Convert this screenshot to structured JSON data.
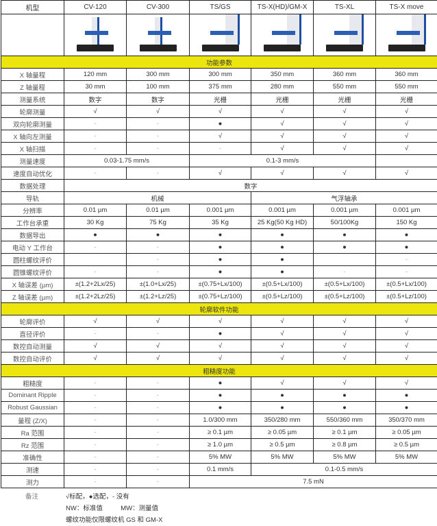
{
  "header": {
    "label": "机型",
    "models": [
      "CV-120",
      "CV-300",
      "TS/GS",
      "TS-X(HD)/GM-X",
      "TS-XL",
      "TS-X move"
    ]
  },
  "images": [
    "CV-120 machine photo",
    "CV-300 machine photo",
    "TS/GS machine photo",
    "TS-X(HD)/GM-X machine photo",
    "TS-XL machine photo",
    "TS-X move machine photo"
  ],
  "rows": [
    {
      "section": "功能参数"
    },
    {
      "label": "X 轴量程",
      "cells": [
        {
          "v": "120 mm"
        },
        {
          "v": "300 mm"
        },
        {
          "v": "300 mm"
        },
        {
          "v": "350 mm"
        },
        {
          "v": "360 mm"
        },
        {
          "v": "360 mm"
        }
      ]
    },
    {
      "label": "Z 轴量程",
      "cells": [
        {
          "v": "30 mm"
        },
        {
          "v": "100 mm"
        },
        {
          "v": "375 mm"
        },
        {
          "v": "280 mm"
        },
        {
          "v": "550 mm"
        },
        {
          "v": "550 mm"
        }
      ]
    },
    {
      "label": "测量系统",
      "cells": [
        {
          "v": "数字"
        },
        {
          "v": "数字"
        },
        {
          "v": "光栅"
        },
        {
          "v": "光栅"
        },
        {
          "v": "光栅"
        },
        {
          "v": "光栅"
        }
      ]
    },
    {
      "label": "轮廓测量",
      "cells": [
        {
          "v": "√"
        },
        {
          "v": "√"
        },
        {
          "v": "√"
        },
        {
          "v": "√"
        },
        {
          "v": "√"
        },
        {
          "v": "√"
        }
      ]
    },
    {
      "label": "双向轮廓测量",
      "cells": [
        {
          "v": "-"
        },
        {
          "v": "-"
        },
        {
          "v": "●"
        },
        {
          "v": "√"
        },
        {
          "v": "√"
        },
        {
          "v": "√"
        }
      ]
    },
    {
      "label": "X 轴向左测量",
      "cells": [
        {
          "v": "-"
        },
        {
          "v": "-"
        },
        {
          "v": "√"
        },
        {
          "v": "√"
        },
        {
          "v": "√"
        },
        {
          "v": "√"
        }
      ]
    },
    {
      "label": "X 轴扫描",
      "cells": [
        {
          "v": "-"
        },
        {
          "v": "-"
        },
        {
          "v": "-"
        },
        {
          "v": "√"
        },
        {
          "v": "√"
        },
        {
          "v": "√"
        }
      ]
    },
    {
      "label": "测量速度",
      "cells": [
        {
          "v": "0.03-1.75 mm/s",
          "span": 2
        },
        {
          "v": "0.1-3 mm/s",
          "span": 3
        },
        {
          "v": ""
        }
      ]
    },
    {
      "label": "速度自动优化",
      "cells": [
        {
          "v": "-"
        },
        {
          "v": "-"
        },
        {
          "v": "√"
        },
        {
          "v": "√"
        },
        {
          "v": "√"
        },
        {
          "v": "√"
        }
      ]
    },
    {
      "label": "数据处理",
      "cells": [
        {
          "v": "数字",
          "span": 6
        }
      ]
    },
    {
      "label": "导轨",
      "cells": [
        {
          "v": "机械",
          "span": 3
        },
        {
          "v": "气浮轴承",
          "span": 3
        }
      ]
    },
    {
      "label": "分辨率",
      "cells": [
        {
          "v": "0.01 µm"
        },
        {
          "v": "0.01 µm"
        },
        {
          "v": "0.001 µm"
        },
        {
          "v": "0.001 µm"
        },
        {
          "v": "0.001 µm"
        },
        {
          "v": "0.001 µm"
        }
      ]
    },
    {
      "label": "工作台承重",
      "cells": [
        {
          "v": "30 Kg"
        },
        {
          "v": "75 Kg"
        },
        {
          "v": "35 Kg"
        },
        {
          "v": "25 Kg(50 Kg HD)"
        },
        {
          "v": "50/100Kg"
        },
        {
          "v": "150 Kg"
        }
      ]
    },
    {
      "label": "数据导出",
      "cells": [
        {
          "v": "●"
        },
        {
          "v": "●"
        },
        {
          "v": "●"
        },
        {
          "v": "●"
        },
        {
          "v": "●"
        },
        {
          "v": "●"
        }
      ]
    },
    {
      "label": "电动 Y 工作台",
      "cells": [
        {
          "v": "-"
        },
        {
          "v": "-"
        },
        {
          "v": "●"
        },
        {
          "v": "●"
        },
        {
          "v": "●"
        },
        {
          "v": "●"
        }
      ]
    },
    {
      "label": "圆柱螺纹评价",
      "cells": [
        {
          "v": ""
        },
        {
          "v": "-"
        },
        {
          "v": "●"
        },
        {
          "v": "●"
        },
        {
          "v": ""
        },
        {
          "v": "-"
        }
      ]
    },
    {
      "label": "圆锥螺纹评价",
      "cells": [
        {
          "v": "-"
        },
        {
          "v": "-"
        },
        {
          "v": "●"
        },
        {
          "v": "●"
        },
        {
          "v": "-"
        },
        {
          "v": "-"
        }
      ]
    },
    {
      "label": "X 轴误差 (µm)",
      "cells": [
        {
          "v": "±(1.2+2Lx/25)"
        },
        {
          "v": "±(1.0+Lx/25)"
        },
        {
          "v": "±(0.75+Lx/100)"
        },
        {
          "v": "±(0.5+Lx/100)"
        },
        {
          "v": "±(0.5+Lx/100)"
        },
        {
          "v": "±(0.5+Lx/100)"
        }
      ]
    },
    {
      "label": "Z 轴误差 (µm)",
      "cells": [
        {
          "v": "±(1.2+2Lz/25)"
        },
        {
          "v": "±(1.2+Lz/25)"
        },
        {
          "v": "±(0.75+Lz/100)"
        },
        {
          "v": "±(0.5+Lz/100)"
        },
        {
          "v": "±(0.5+Lz/100)"
        },
        {
          "v": "±(0.5+Lz/100)"
        }
      ]
    },
    {
      "section": "轮廓软件功能"
    },
    {
      "label": "轮廓评价",
      "cells": [
        {
          "v": "√"
        },
        {
          "v": "√"
        },
        {
          "v": "√"
        },
        {
          "v": "√"
        },
        {
          "v": "√"
        },
        {
          "v": "√"
        }
      ]
    },
    {
      "label": "直径评价",
      "cells": [
        {
          "v": "-"
        },
        {
          "v": "-"
        },
        {
          "v": "●"
        },
        {
          "v": "√"
        },
        {
          "v": "√"
        },
        {
          "v": "√"
        }
      ]
    },
    {
      "label": "数控自动测量",
      "cells": [
        {
          "v": "√"
        },
        {
          "v": "√"
        },
        {
          "v": "√"
        },
        {
          "v": "√"
        },
        {
          "v": "√"
        },
        {
          "v": "√"
        }
      ]
    },
    {
      "label": "数控自动评价",
      "cells": [
        {
          "v": "√"
        },
        {
          "v": "√"
        },
        {
          "v": "√"
        },
        {
          "v": "√"
        },
        {
          "v": "√"
        },
        {
          "v": "√"
        }
      ]
    },
    {
      "section": "粗糙度功能"
    },
    {
      "label": "粗糙度",
      "cells": [
        {
          "v": "-"
        },
        {
          "v": "-"
        },
        {
          "v": "●"
        },
        {
          "v": "√"
        },
        {
          "v": "√"
        },
        {
          "v": "√"
        }
      ]
    },
    {
      "label": "Dominant Ripple",
      "cells": [
        {
          "v": "-"
        },
        {
          "v": "-"
        },
        {
          "v": "●"
        },
        {
          "v": "●"
        },
        {
          "v": "●"
        },
        {
          "v": "●"
        }
      ]
    },
    {
      "label": "Robust Gaussian",
      "cells": [
        {
          "v": "-"
        },
        {
          "v": "-"
        },
        {
          "v": "●"
        },
        {
          "v": "●"
        },
        {
          "v": "●"
        },
        {
          "v": "●"
        }
      ]
    },
    {
      "label": "量程 (Z/X)",
      "cells": [
        {
          "v": "-"
        },
        {
          "v": "-"
        },
        {
          "v": "1.0/300 mm"
        },
        {
          "v": "350/280 mm"
        },
        {
          "v": "550/360 mm"
        },
        {
          "v": "350/370 mm"
        }
      ]
    },
    {
      "label": "Ra 范围",
      "cells": [
        {
          "v": "-"
        },
        {
          "v": "-"
        },
        {
          "v": "≥ 0.1 µm"
        },
        {
          "v": "≥ 0.05 µm"
        },
        {
          "v": "≥ 0.1 µm"
        },
        {
          "v": "≥ 0.05 µm"
        }
      ]
    },
    {
      "label": "Rz 范围",
      "cells": [
        {
          "v": "-"
        },
        {
          "v": "-"
        },
        {
          "v": "≥ 1.0 µm"
        },
        {
          "v": "≥ 0.5 µm"
        },
        {
          "v": "≥ 0.8 µm"
        },
        {
          "v": "≥ 0.5 µm"
        }
      ]
    },
    {
      "label": "准确性",
      "cells": [
        {
          "v": "-"
        },
        {
          "v": "-"
        },
        {
          "v": "5% MW"
        },
        {
          "v": "5% MW"
        },
        {
          "v": "5% MW"
        },
        {
          "v": "5% MW"
        }
      ]
    },
    {
      "label": "测速",
      "cells": [
        {
          "v": "-"
        },
        {
          "v": "-"
        },
        {
          "v": "0.1 mm/s"
        },
        {
          "v": "0.1-0.5 mm/s",
          "span": 3
        }
      ]
    },
    {
      "label": "测力",
      "cells": [
        {
          "v": "-"
        },
        {
          "v": "-"
        },
        {
          "v": "7.5 mN",
          "span": 4
        }
      ]
    }
  ],
  "notes": {
    "label": "备注",
    "lines": [
      "√标配，●选配，- 没有",
      "NW：标准值          MW：测量值",
      "螺纹功能仅限螺纹机 GS 和 GM-X"
    ]
  },
  "colors": {
    "section_bg": "#ece60e",
    "border": "#222222",
    "accent_blue": "#2b5fb4"
  }
}
